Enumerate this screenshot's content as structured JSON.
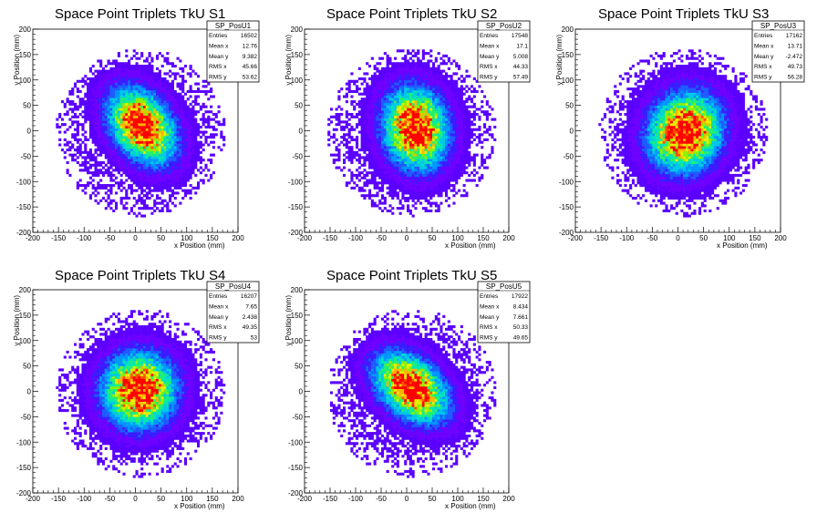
{
  "chart_data": [
    {
      "type": "heatmap",
      "title": "Space Point Triplets TkU S1",
      "xlabel": "x Position (mm)",
      "ylabel": "y Position (mm)",
      "xlim": [
        -200,
        200
      ],
      "ylim": [
        -200,
        200
      ],
      "xticks": [
        "-200",
        "-150",
        "-100",
        "-50",
        "0",
        "50",
        "100",
        "150",
        "200"
      ],
      "yticks": [
        "-200",
        "-150",
        "-100",
        "-50",
        "0",
        "50",
        "100",
        "150",
        "200"
      ],
      "stats": {
        "name": "SP_PosU1",
        "rows": [
          {
            "label": "Entries",
            "value": "16502"
          },
          {
            "label": "Mean x",
            "value": "12.76"
          },
          {
            "label": "Mean y",
            "value": "9.382"
          },
          {
            "label": "RMS x",
            "value": "45.66"
          },
          {
            "label": "RMS y",
            "value": "53.62"
          }
        ]
      },
      "cluster": {
        "mean_x": 12.76,
        "mean_y": 9.382,
        "rms_x": 45.66,
        "rms_y": 53.62,
        "rho": -0.35,
        "seed": 11
      }
    },
    {
      "type": "heatmap",
      "title": "Space Point Triplets TkU S2",
      "xlabel": "x Position (mm)",
      "ylabel": "y Position (mm)",
      "xlim": [
        -200,
        200
      ],
      "ylim": [
        -200,
        200
      ],
      "xticks": [
        "-200",
        "-150",
        "-100",
        "-50",
        "0",
        "50",
        "100",
        "150",
        "200"
      ],
      "yticks": [
        "-200",
        "-150",
        "-100",
        "-50",
        "0",
        "50",
        "100",
        "150",
        "200"
      ],
      "stats": {
        "name": "SP_PosU2",
        "rows": [
          {
            "label": "Entries",
            "value": "17548"
          },
          {
            "label": "Mean x",
            "value": "17.1"
          },
          {
            "label": "Mean y",
            "value": "5.008"
          },
          {
            "label": "RMS x",
            "value": "44.33"
          },
          {
            "label": "RMS y",
            "value": "57.49"
          }
        ]
      },
      "cluster": {
        "mean_x": 17.1,
        "mean_y": 5.008,
        "rms_x": 44.33,
        "rms_y": 57.49,
        "rho": -0.1,
        "seed": 23
      }
    },
    {
      "type": "heatmap",
      "title": "Space Point Triplets TkU S3",
      "xlabel": "x Position (mm)",
      "ylabel": "y Position (mm)",
      "xlim": [
        -200,
        200
      ],
      "ylim": [
        -200,
        200
      ],
      "xticks": [
        "-200",
        "-150",
        "-100",
        "-50",
        "0",
        "50",
        "100",
        "150",
        "200"
      ],
      "yticks": [
        "-200",
        "-150",
        "-100",
        "-50",
        "0",
        "50",
        "100",
        "150",
        "200"
      ],
      "stats": {
        "name": "SP_PosU3",
        "rows": [
          {
            "label": "Entries",
            "value": "17162"
          },
          {
            "label": "Mean x",
            "value": "13.71"
          },
          {
            "label": "Mean y",
            "value": "-2.472"
          },
          {
            "label": "RMS x",
            "value": "49.73"
          },
          {
            "label": "RMS y",
            "value": "56.28"
          }
        ]
      },
      "cluster": {
        "mean_x": 13.71,
        "mean_y": -2.472,
        "rms_x": 49.73,
        "rms_y": 56.28,
        "rho": 0.1,
        "seed": 37
      }
    },
    {
      "type": "heatmap",
      "title": "Space Point Triplets TkU S4",
      "xlabel": "x Position (mm)",
      "ylabel": "y Position (mm)",
      "xlim": [
        -200,
        200
      ],
      "ylim": [
        -200,
        200
      ],
      "xticks": [
        "-200",
        "-150",
        "-100",
        "-50",
        "0",
        "50",
        "100",
        "150",
        "200"
      ],
      "yticks": [
        "-200",
        "-150",
        "-100",
        "-50",
        "0",
        "50",
        "100",
        "150",
        "200"
      ],
      "stats": {
        "name": "SP_PosU4",
        "rows": [
          {
            "label": "Entries",
            "value": "16207"
          },
          {
            "label": "Mean x",
            "value": "7.65"
          },
          {
            "label": "Mean y",
            "value": "2.438"
          },
          {
            "label": "RMS x",
            "value": "49.35"
          },
          {
            "label": "RMS y",
            "value": "53"
          }
        ]
      },
      "cluster": {
        "mean_x": 7.65,
        "mean_y": 2.438,
        "rms_x": 49.35,
        "rms_y": 53,
        "rho": 0.0,
        "seed": 41
      }
    },
    {
      "type": "heatmap",
      "title": "Space Point Triplets TkU S5",
      "xlabel": "x Position (mm)",
      "ylabel": "y Position (mm)",
      "xlim": [
        -200,
        200
      ],
      "ylim": [
        -200,
        200
      ],
      "xticks": [
        "-200",
        "-150",
        "-100",
        "-50",
        "0",
        "50",
        "100",
        "150",
        "200"
      ],
      "yticks": [
        "-200",
        "-150",
        "-100",
        "-50",
        "0",
        "50",
        "100",
        "150",
        "200"
      ],
      "stats": {
        "name": "SP_PosU5",
        "rows": [
          {
            "label": "Entries",
            "value": "17922"
          },
          {
            "label": "Mean x",
            "value": "8.434"
          },
          {
            "label": "Mean y",
            "value": "7.661"
          },
          {
            "label": "RMS x",
            "value": "50.33"
          },
          {
            "label": "RMS y",
            "value": "49.65"
          }
        ]
      },
      "cluster": {
        "mean_x": 8.434,
        "mean_y": 7.661,
        "rms_x": 50.33,
        "rms_y": 49.65,
        "rho": -0.4,
        "seed": 53
      }
    }
  ],
  "colors": {
    "palette": [
      "#5b00ff",
      "#6e00ff",
      "#3b1bff",
      "#1e5bff",
      "#0096ff",
      "#00c8e6",
      "#00e6b4",
      "#22f070",
      "#8cf000",
      "#e6f000",
      "#ffb400",
      "#ff5000",
      "#ff0000"
    ],
    "axis": "#000000",
    "background": "#ffffff"
  }
}
